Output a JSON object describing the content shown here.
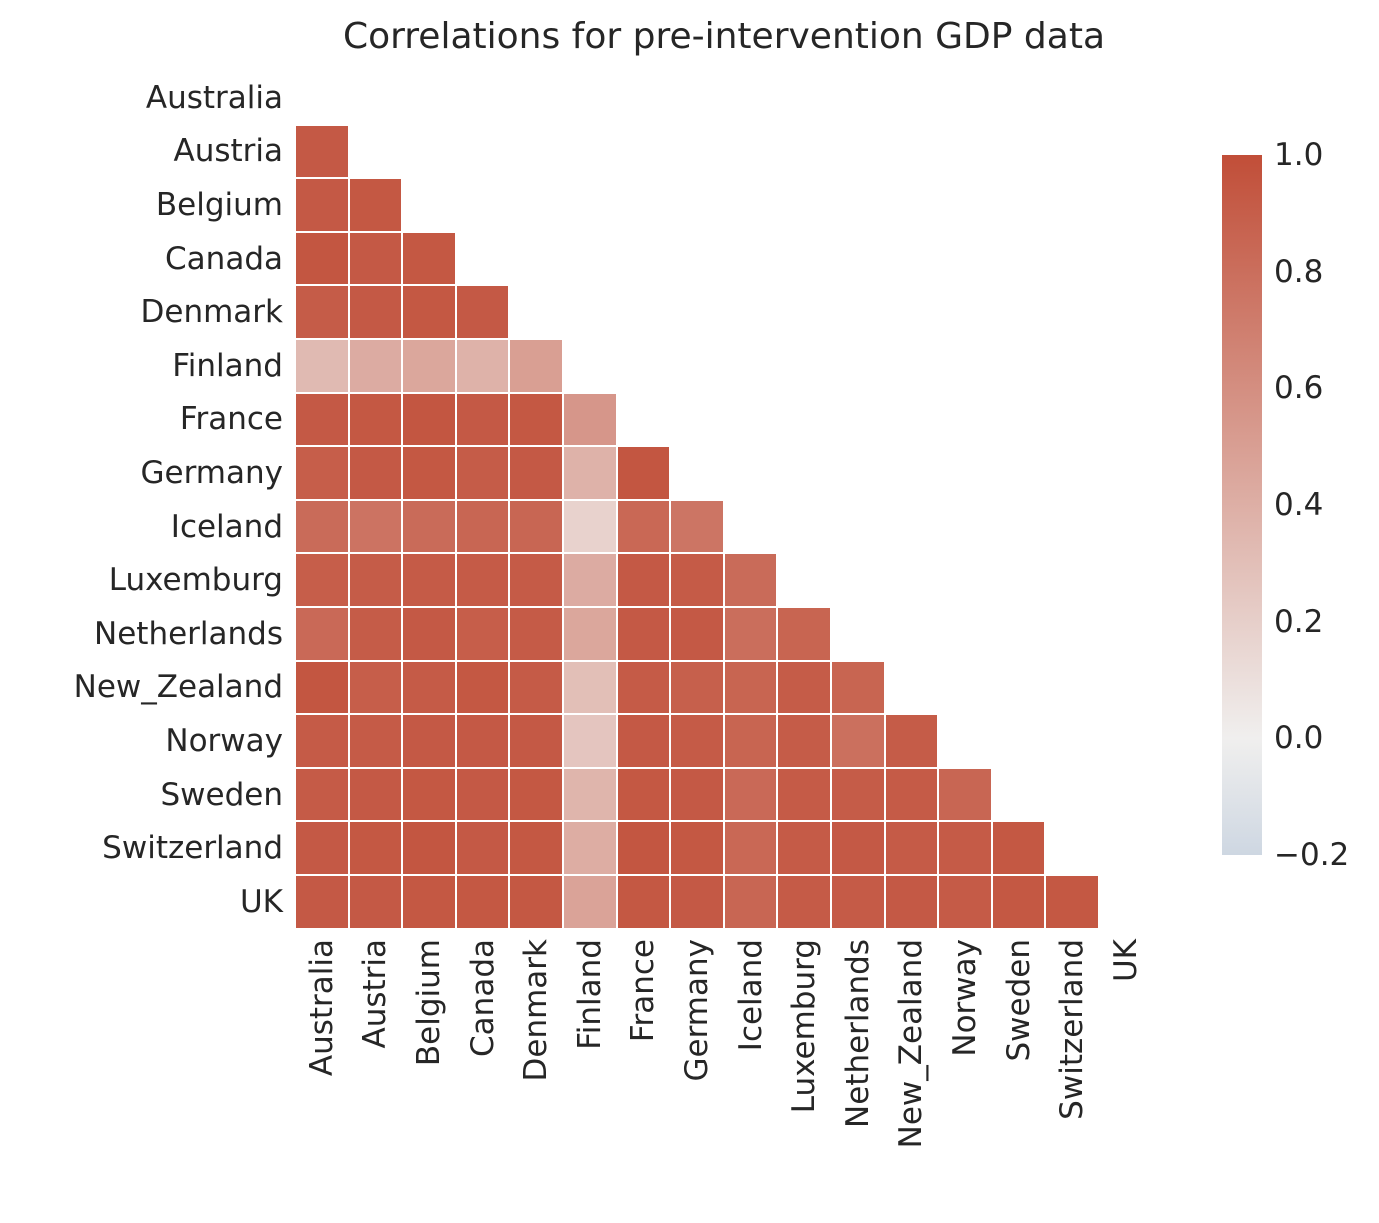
{
  "chart_data": {
    "type": "heatmap",
    "title": "Correlations for pre-intervention GDP data",
    "labels": [
      "Australia",
      "Austria",
      "Belgium",
      "Canada",
      "Denmark",
      "Finland",
      "France",
      "Germany",
      "Iceland",
      "Luxemburg",
      "Netherlands",
      "New_Zealand",
      "Norway",
      "Sweden",
      "Switzerland",
      "UK"
    ],
    "mask": "upper_triangle_and_diagonal_hidden",
    "vmin": -0.2,
    "vmax": 1.0,
    "legend_position": "right",
    "colorbar_ticks": [
      "1.0",
      "0.8",
      "0.6",
      "0.4",
      "0.2",
      "0.0",
      "−0.2"
    ],
    "colormap": {
      "positive_end": "#c14e38",
      "center": "#f0efee",
      "negative_end": "#4575b4"
    },
    "values": [
      [
        null,
        null,
        null,
        null,
        null,
        null,
        null,
        null,
        null,
        null,
        null,
        null,
        null,
        null,
        null,
        null
      ],
      [
        0.93,
        null,
        null,
        null,
        null,
        null,
        null,
        null,
        null,
        null,
        null,
        null,
        null,
        null,
        null,
        null
      ],
      [
        0.93,
        0.94,
        null,
        null,
        null,
        null,
        null,
        null,
        null,
        null,
        null,
        null,
        null,
        null,
        null,
        null
      ],
      [
        0.95,
        0.93,
        0.94,
        null,
        null,
        null,
        null,
        null,
        null,
        null,
        null,
        null,
        null,
        null,
        null,
        null
      ],
      [
        0.91,
        0.93,
        0.94,
        0.93,
        null,
        null,
        null,
        null,
        null,
        null,
        null,
        null,
        null,
        null,
        null,
        null
      ],
      [
        0.33,
        0.42,
        0.45,
        0.38,
        0.5,
        null,
        null,
        null,
        null,
        null,
        null,
        null,
        null,
        null,
        null,
        null
      ],
      [
        0.93,
        0.94,
        0.95,
        0.93,
        0.94,
        0.55,
        null,
        null,
        null,
        null,
        null,
        null,
        null,
        null,
        null,
        null
      ],
      [
        0.9,
        0.93,
        0.94,
        0.91,
        0.93,
        0.38,
        0.95,
        null,
        null,
        null,
        null,
        null,
        null,
        null,
        null,
        null
      ],
      [
        0.82,
        0.77,
        0.82,
        0.85,
        0.85,
        0.18,
        0.84,
        0.76,
        null,
        null,
        null,
        null,
        null,
        null,
        null,
        null
      ],
      [
        0.9,
        0.91,
        0.92,
        0.92,
        0.92,
        0.42,
        0.93,
        0.92,
        0.82,
        null,
        null,
        null,
        null,
        null,
        null,
        null
      ],
      [
        0.83,
        0.91,
        0.93,
        0.9,
        0.92,
        0.45,
        0.93,
        0.93,
        0.8,
        0.86,
        null,
        null,
        null,
        null,
        null,
        null
      ],
      [
        0.95,
        0.9,
        0.92,
        0.94,
        0.92,
        0.3,
        0.92,
        0.89,
        0.86,
        0.91,
        0.86,
        null,
        null,
        null,
        null,
        null
      ],
      [
        0.92,
        0.92,
        0.93,
        0.93,
        0.93,
        0.26,
        0.93,
        0.92,
        0.86,
        0.91,
        0.79,
        0.91,
        null,
        null,
        null,
        null
      ],
      [
        0.92,
        0.93,
        0.94,
        0.93,
        0.94,
        0.36,
        0.94,
        0.93,
        0.83,
        0.92,
        0.91,
        0.92,
        0.85,
        null,
        null,
        null
      ],
      [
        0.93,
        0.94,
        0.95,
        0.93,
        0.94,
        0.41,
        0.95,
        0.94,
        0.84,
        0.92,
        0.93,
        0.92,
        0.92,
        0.94,
        null,
        null
      ],
      [
        0.93,
        0.93,
        0.94,
        0.94,
        0.94,
        0.47,
        0.94,
        0.93,
        0.85,
        0.92,
        0.92,
        0.93,
        0.92,
        0.94,
        0.94,
        null
      ]
    ]
  }
}
